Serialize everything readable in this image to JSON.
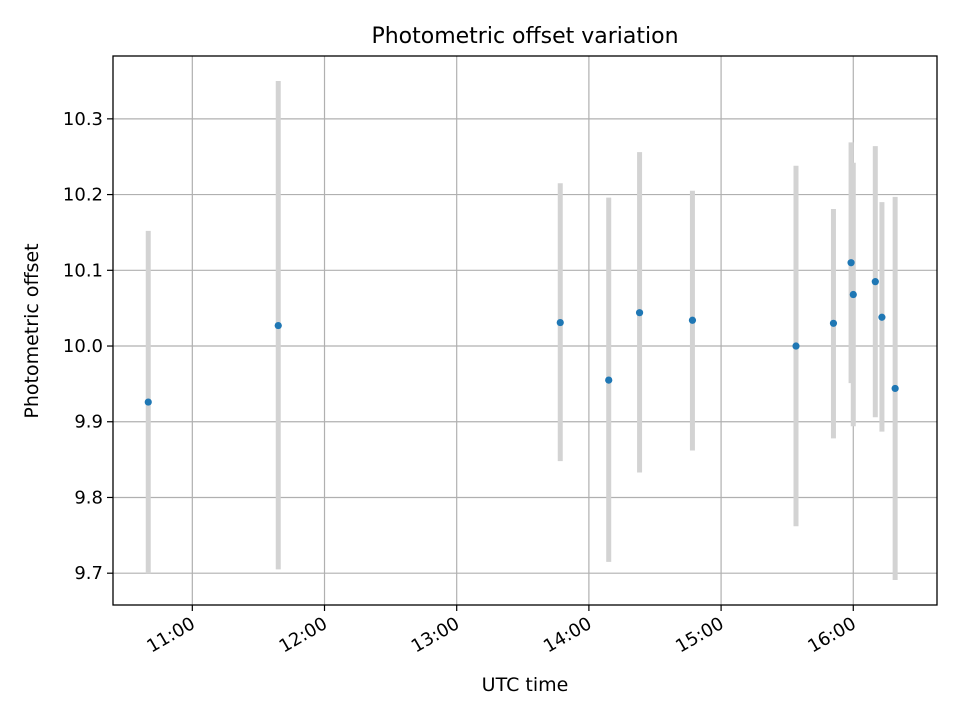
{
  "chart_data": {
    "type": "scatter",
    "title": "Photometric offset variation",
    "xlabel": "UTC time",
    "ylabel": "Photometric offset",
    "x_ticks": [
      "11:00",
      "12:00",
      "13:00",
      "14:00",
      "15:00",
      "16:00"
    ],
    "y_ticks": [
      "9.7",
      "9.8",
      "9.9",
      "10.0",
      "10.1",
      "10.2",
      "10.3"
    ],
    "xlim": [
      "10:24",
      "16:38"
    ],
    "ylim": [
      9.658,
      10.383
    ],
    "grid": true,
    "marker_color": "#1f77b4",
    "errorbar_color": "#d3d3d3",
    "points": [
      {
        "x": "10:40",
        "y": 9.926,
        "y_low": 9.7,
        "y_high": 10.152
      },
      {
        "x": "11:39",
        "y": 10.027,
        "y_low": 9.705,
        "y_high": 10.35
      },
      {
        "x": "13:47",
        "y": 10.031,
        "y_low": 9.848,
        "y_high": 10.215
      },
      {
        "x": "14:09",
        "y": 9.955,
        "y_low": 9.715,
        "y_high": 10.196
      },
      {
        "x": "14:23",
        "y": 10.044,
        "y_low": 9.833,
        "y_high": 10.256
      },
      {
        "x": "14:47",
        "y": 10.034,
        "y_low": 9.862,
        "y_high": 10.205
      },
      {
        "x": "15:34",
        "y": 10.0,
        "y_low": 9.762,
        "y_high": 10.238
      },
      {
        "x": "15:51",
        "y": 10.03,
        "y_low": 9.878,
        "y_high": 10.181
      },
      {
        "x": "15:59",
        "y": 10.11,
        "y_low": 9.951,
        "y_high": 10.269
      },
      {
        "x": "16:00",
        "y": 10.068,
        "y_low": 9.894,
        "y_high": 10.242
      },
      {
        "x": "16:10",
        "y": 10.085,
        "y_low": 9.906,
        "y_high": 10.264
      },
      {
        "x": "16:13",
        "y": 10.038,
        "y_low": 9.887,
        "y_high": 10.19
      },
      {
        "x": "16:19",
        "y": 9.944,
        "y_low": 9.691,
        "y_high": 10.197
      }
    ]
  }
}
